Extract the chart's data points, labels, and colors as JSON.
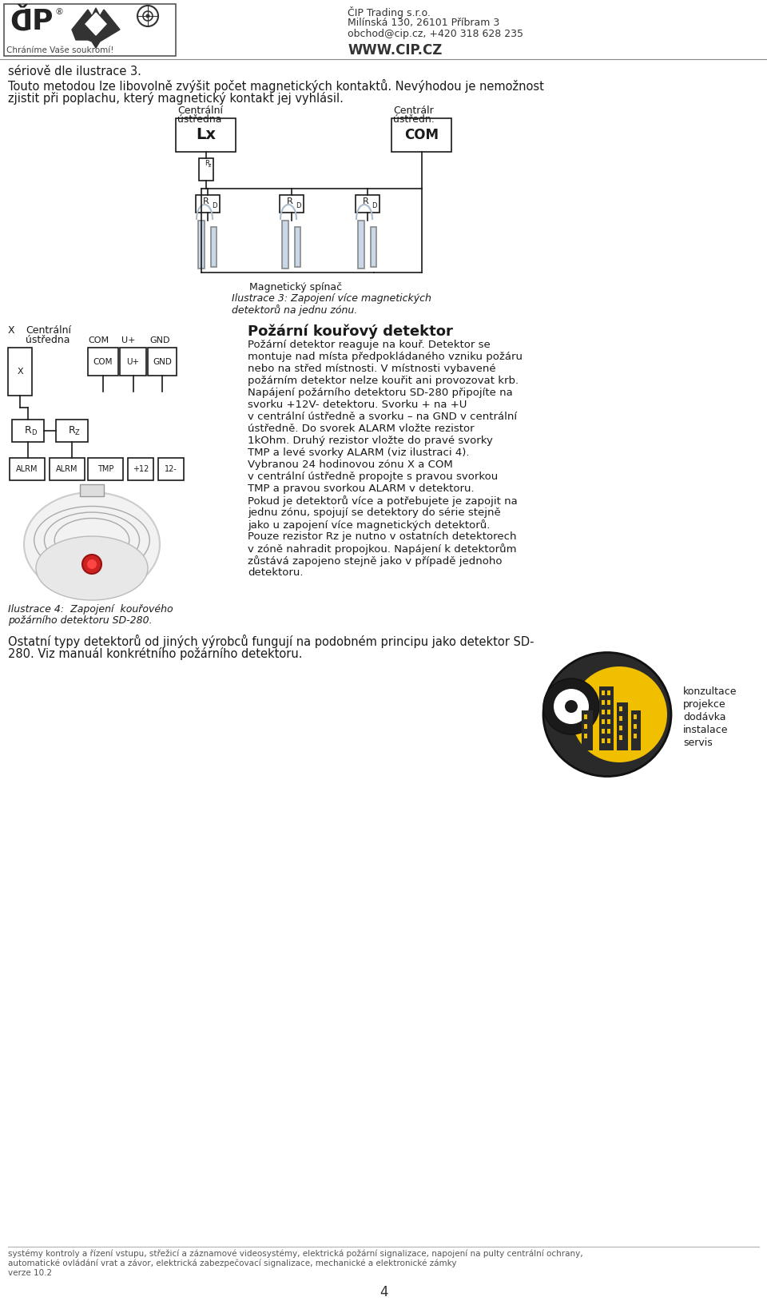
{
  "bg_color": "#ffffff",
  "text_color": "#1a1a1a",
  "header_company": "ČIP Trading s.r.o.",
  "header_address": "Milínská 130, 26101 Příbram 3",
  "header_contact": "obchod@cip.cz, +420 318 628 235",
  "header_web": "WWW.CIP.CZ",
  "header_slogan": "Chráníme Vaše soukromí!",
  "para1": "sériově dle ilustrace 3.",
  "para2a": "Touto metodou lze libovolně zvýšit počet magnetických kontaktů. Nevýhodou je nemožnost",
  "para2b": "zjistit při poplachu, který magnetický kontakt jej vyhlásil.",
  "fig3_cap1": "Magnetický spínač",
  "fig3_cap2": "Ilustrace 3: Zapojení více magnetických",
  "fig3_cap3": "detektorů na jednu zónu.",
  "section_title": "Požární kouřový detektor",
  "right_lines": [
    "Požární detektor reaguje na kouř. Detektor se",
    "montuje nad místa předpokládaného vzniku požáru",
    "nebo na střed místnosti. V místnosti vybavené",
    "požárním detektor nelze kouřit ani provozovat krb.",
    "Napájení požárního detektoru SD-280 připojíte na",
    "svorku +12V- detektoru. Svorku + na +U",
    "v centrální ústředně a svorku – na GND v centrální",
    "ústředně. Do svorek ALARM vložte rezistor",
    "1kOhm. Druhý rezistor vložte do pravé svorky",
    "TMP a levé svorky ALARM (viz ilustraci 4).",
    "Vybranou 24 hodinovou zónu X a COM",
    "v centrální ústředně propojte s pravou svorkou",
    "TMP a pravou svorkou ALARM v detektoru.",
    "Pokud je detektorů více a potřebujete je zapojit na",
    "jednu zónu, spojují se detektory do série stejně",
    "jako u zapojení více magnetických detektorů.",
    "Pouze rezistor Rz je nutno v ostatních detektorech",
    "v zóně nahradit propojkou. Napájení k detektorům",
    "zůstává zapojeno stejně jako v případě jednoho",
    "detektoru."
  ],
  "fig4_cap1": "Ilustrace 4:  Zapojení  kouřového",
  "fig4_cap2": "požárního detektoru SD-280.",
  "last_line1": "Ostatní typy detektorů od jiných výrobců fungují na podobném principu jako detektor SD-",
  "last_line2": "280. Viz manuál konkrétního požárního detektoru.",
  "legend_items": [
    "konzultace",
    "projekce",
    "dodávka",
    "instalace",
    "servis"
  ],
  "footer_line1": "systémy kontroly a řízení vstupu, střežicí a záznamové videosystémy, elektrická požární signalizace, napojení na pulty centrální ochrany,",
  "footer_line2": "automatické ovládání vrat a závor, elektrická zabezpečovací signalizace, mechanické a elektronické zámky",
  "footer_line3": "verze 10.2",
  "footer_page": "4"
}
